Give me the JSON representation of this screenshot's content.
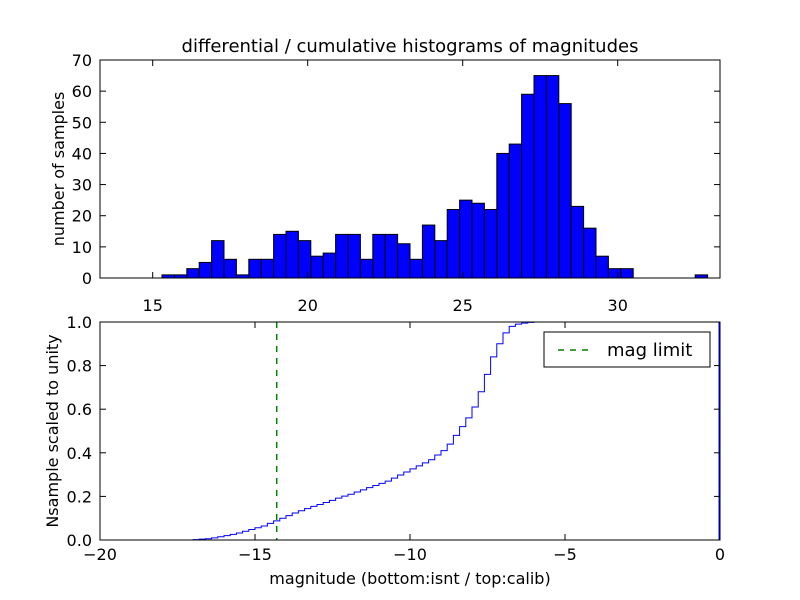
{
  "chart_data": [
    {
      "type": "bar",
      "title": "differential / cumulative histograms of magnitudes",
      "xlabel": "",
      "ylabel": "number of samples",
      "xlim": [
        13.3,
        33.3
      ],
      "ylim": [
        0,
        70
      ],
      "xticks": [
        15,
        20,
        25,
        30
      ],
      "yticks": [
        0,
        10,
        20,
        30,
        40,
        50,
        60,
        70
      ],
      "bar_color": "#0000ff",
      "bin_edges": [
        15.3,
        15.7,
        16.1,
        16.5,
        16.9,
        17.3,
        17.7,
        18.1,
        18.5,
        18.9,
        19.3,
        19.7,
        20.1,
        20.5,
        20.9,
        21.3,
        21.7,
        22.1,
        22.5,
        22.9,
        23.3,
        23.7,
        24.1,
        24.5,
        24.9,
        25.3,
        25.7,
        26.1,
        26.5,
        26.9,
        27.3,
        27.7,
        28.1,
        28.5,
        28.9,
        29.3,
        29.7,
        30.1,
        30.5,
        30.9,
        31.3,
        31.7,
        32.1,
        32.5,
        32.9
      ],
      "values": [
        1,
        1,
        3,
        5,
        12,
        6,
        1,
        6,
        6,
        14,
        15,
        12,
        7,
        8,
        14,
        14,
        6,
        14,
        14,
        11,
        6,
        17,
        12,
        22,
        25,
        24,
        22,
        40,
        43,
        59,
        65,
        65,
        56,
        23,
        16,
        7,
        3,
        3,
        0,
        0,
        0,
        0,
        0,
        1
      ]
    },
    {
      "type": "line",
      "ylabel": "Nsample scaled to unity",
      "xlabel": "magnitude (bottom:isnt / top:calib)",
      "xlim": [
        -20,
        0
      ],
      "ylim": [
        0,
        1.0
      ],
      "xticks": [
        -20,
        -15,
        -10,
        -5,
        0
      ],
      "yticks": [
        0.0,
        0.2,
        0.4,
        0.6,
        0.8,
        1.0
      ],
      "line_color": "#0000ff",
      "mag_limit": -14.3,
      "mag_limit_color": "#008000",
      "legend": {
        "placement": "top-right",
        "entries": [
          "mag limit"
        ]
      },
      "cdf_x_start": -17.0,
      "cdf_bin_width": 0.2,
      "cdf_values": [
        0.002,
        0.004,
        0.006,
        0.01,
        0.015,
        0.02,
        0.026,
        0.032,
        0.04,
        0.048,
        0.056,
        0.064,
        0.076,
        0.088,
        0.1,
        0.112,
        0.124,
        0.134,
        0.144,
        0.154,
        0.163,
        0.172,
        0.182,
        0.192,
        0.201,
        0.21,
        0.22,
        0.23,
        0.24,
        0.25,
        0.26,
        0.27,
        0.284,
        0.298,
        0.312,
        0.326,
        0.34,
        0.354,
        0.368,
        0.39,
        0.41,
        0.44,
        0.48,
        0.52,
        0.56,
        0.61,
        0.68,
        0.76,
        0.84,
        0.9,
        0.95,
        0.98,
        0.99,
        0.995,
        0.998,
        1.0,
        1.0
      ],
      "right_edge_drop": true
    }
  ]
}
